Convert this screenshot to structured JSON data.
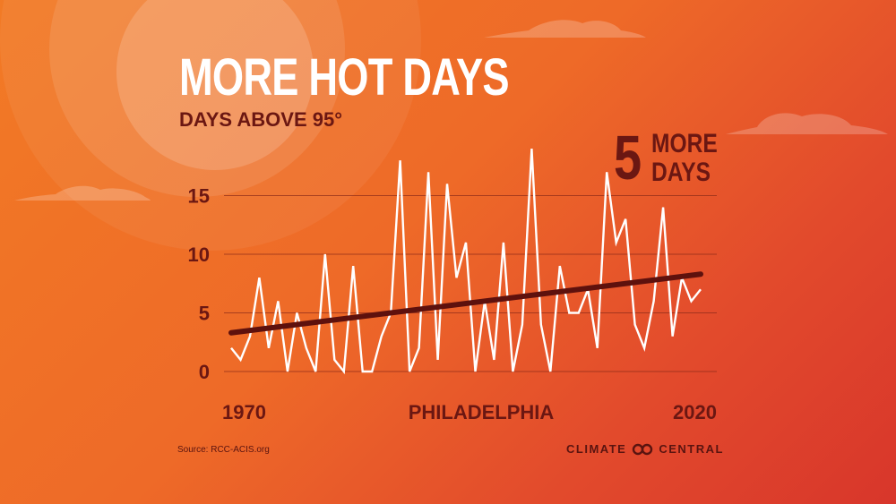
{
  "title": "MORE HOT DAYS",
  "subtitle": "DAYS ABOVE 95°",
  "callout": {
    "number": "5",
    "line1": "MORE",
    "line2": "DAYS"
  },
  "source": "Source: RCC-ACIS.org",
  "brand": {
    "left": "CLIMATE",
    "right": "CENTRAL",
    "logo_icon": "infinity-logo-icon"
  },
  "colors": {
    "line": "#ffffff",
    "trend": "#5e110d",
    "text": "#6b1712",
    "grid": "#8a2a18"
  },
  "chart_data": {
    "type": "line",
    "title": "MORE HOT DAYS",
    "subtitle": "DAYS ABOVE 95°",
    "xlabel": "PHILADELPHIA",
    "ylabel": "",
    "x_tick_labels": [
      "1970",
      "PHILADELPHIA",
      "2020"
    ],
    "y_ticks": [
      0,
      5,
      10,
      15
    ],
    "xlim": [
      1970,
      2020
    ],
    "ylim": [
      0,
      18
    ],
    "grid": true,
    "series": [
      {
        "x": [
          1970,
          1971,
          1972,
          1973,
          1974,
          1975,
          1976,
          1977,
          1978,
          1979,
          1980,
          1981,
          1982,
          1983,
          1984,
          1985,
          1986,
          1987,
          1988,
          1989,
          1990,
          1991,
          1992,
          1993,
          1994,
          1995,
          1996,
          1997,
          1998,
          1999,
          2000,
          2001,
          2002,
          2003,
          2004,
          2005,
          2006,
          2007,
          2008,
          2009,
          2010,
          2011,
          2012,
          2013,
          2014,
          2015,
          2016,
          2017,
          2018,
          2019,
          2020
        ],
        "values": [
          2,
          1,
          3,
          8,
          2,
          6,
          0,
          5,
          2,
          0,
          10,
          1,
          0,
          9,
          0,
          0,
          3,
          5,
          18,
          0,
          2,
          17,
          1,
          16,
          8,
          11,
          0,
          6,
          1,
          11,
          0,
          4,
          19,
          4,
          0,
          9,
          5,
          5,
          7,
          2,
          17,
          11,
          13,
          4,
          2,
          6,
          14,
          3,
          8,
          6,
          7
        ]
      },
      {
        "x": [
          1970,
          2020
        ],
        "values": [
          3.3,
          8.3
        ]
      }
    ]
  }
}
